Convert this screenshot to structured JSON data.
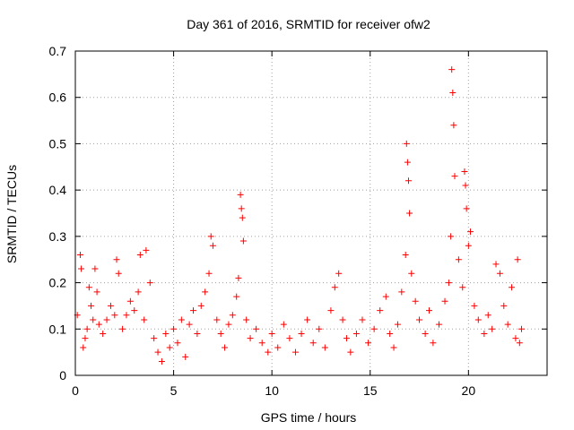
{
  "chart_data": {
    "type": "scatter",
    "title": "Day 361 of 2016, SRMTID for receiver ofw2",
    "xlabel": "GPS time / hours",
    "ylabel": "SRMTID / TECUs",
    "xlim": [
      0,
      24
    ],
    "ylim": [
      0,
      0.7
    ],
    "xticks": [
      0,
      5,
      10,
      15,
      20
    ],
    "yticks": [
      0,
      0.1,
      0.2,
      0.3,
      0.4,
      0.5,
      0.6,
      0.7
    ],
    "grid": true,
    "marker": "+",
    "marker_color": "#ff0000",
    "series": [
      {
        "name": "ofw2",
        "points": [
          [
            0.1,
            0.13
          ],
          [
            0.25,
            0.26
          ],
          [
            0.3,
            0.23
          ],
          [
            0.4,
            0.06
          ],
          [
            0.5,
            0.08
          ],
          [
            0.6,
            0.1
          ],
          [
            0.7,
            0.19
          ],
          [
            0.8,
            0.15
          ],
          [
            0.9,
            0.12
          ],
          [
            1.0,
            0.23
          ],
          [
            1.1,
            0.18
          ],
          [
            1.2,
            0.11
          ],
          [
            1.4,
            0.09
          ],
          [
            1.6,
            0.12
          ],
          [
            1.8,
            0.15
          ],
          [
            2.0,
            0.13
          ],
          [
            2.1,
            0.25
          ],
          [
            2.2,
            0.22
          ],
          [
            2.4,
            0.1
          ],
          [
            2.6,
            0.13
          ],
          [
            2.8,
            0.16
          ],
          [
            3.0,
            0.14
          ],
          [
            3.2,
            0.18
          ],
          [
            3.3,
            0.26
          ],
          [
            3.5,
            0.12
          ],
          [
            3.6,
            0.27
          ],
          [
            3.8,
            0.2
          ],
          [
            4.0,
            0.08
          ],
          [
            4.2,
            0.05
          ],
          [
            4.4,
            0.03
          ],
          [
            4.6,
            0.09
          ],
          [
            4.8,
            0.06
          ],
          [
            5.0,
            0.1
          ],
          [
            5.2,
            0.07
          ],
          [
            5.4,
            0.12
          ],
          [
            5.6,
            0.04
          ],
          [
            5.8,
            0.11
          ],
          [
            6.0,
            0.14
          ],
          [
            6.2,
            0.09
          ],
          [
            6.4,
            0.15
          ],
          [
            6.6,
            0.18
          ],
          [
            6.8,
            0.22
          ],
          [
            6.9,
            0.3
          ],
          [
            7.0,
            0.28
          ],
          [
            7.2,
            0.12
          ],
          [
            7.4,
            0.09
          ],
          [
            7.6,
            0.06
          ],
          [
            7.8,
            0.11
          ],
          [
            8.0,
            0.13
          ],
          [
            8.2,
            0.17
          ],
          [
            8.3,
            0.21
          ],
          [
            8.4,
            0.39
          ],
          [
            8.45,
            0.36
          ],
          [
            8.5,
            0.34
          ],
          [
            8.55,
            0.29
          ],
          [
            8.7,
            0.12
          ],
          [
            8.9,
            0.08
          ],
          [
            9.2,
            0.1
          ],
          [
            9.5,
            0.07
          ],
          [
            9.8,
            0.05
          ],
          [
            10.0,
            0.09
          ],
          [
            10.3,
            0.06
          ],
          [
            10.6,
            0.11
          ],
          [
            10.9,
            0.08
          ],
          [
            11.2,
            0.05
          ],
          [
            11.5,
            0.09
          ],
          [
            11.8,
            0.12
          ],
          [
            12.1,
            0.07
          ],
          [
            12.4,
            0.1
          ],
          [
            12.7,
            0.06
          ],
          [
            13.0,
            0.14
          ],
          [
            13.2,
            0.19
          ],
          [
            13.4,
            0.22
          ],
          [
            13.6,
            0.12
          ],
          [
            13.8,
            0.08
          ],
          [
            14.0,
            0.05
          ],
          [
            14.3,
            0.09
          ],
          [
            14.6,
            0.12
          ],
          [
            14.9,
            0.07
          ],
          [
            15.2,
            0.1
          ],
          [
            15.5,
            0.14
          ],
          [
            15.8,
            0.17
          ],
          [
            16.0,
            0.09
          ],
          [
            16.2,
            0.06
          ],
          [
            16.4,
            0.11
          ],
          [
            16.6,
            0.18
          ],
          [
            16.8,
            0.26
          ],
          [
            16.85,
            0.5
          ],
          [
            16.9,
            0.46
          ],
          [
            16.95,
            0.42
          ],
          [
            17.0,
            0.35
          ],
          [
            17.1,
            0.22
          ],
          [
            17.3,
            0.16
          ],
          [
            17.5,
            0.12
          ],
          [
            17.8,
            0.09
          ],
          [
            18.0,
            0.14
          ],
          [
            18.2,
            0.07
          ],
          [
            18.5,
            0.11
          ],
          [
            18.8,
            0.16
          ],
          [
            19.0,
            0.2
          ],
          [
            19.1,
            0.3
          ],
          [
            19.15,
            0.66
          ],
          [
            19.2,
            0.61
          ],
          [
            19.25,
            0.54
          ],
          [
            19.3,
            0.43
          ],
          [
            19.5,
            0.25
          ],
          [
            19.7,
            0.19
          ],
          [
            19.8,
            0.44
          ],
          [
            19.85,
            0.41
          ],
          [
            19.9,
            0.36
          ],
          [
            20.0,
            0.28
          ],
          [
            20.1,
            0.31
          ],
          [
            20.3,
            0.15
          ],
          [
            20.5,
            0.12
          ],
          [
            20.8,
            0.09
          ],
          [
            21.0,
            0.13
          ],
          [
            21.2,
            0.1
          ],
          [
            21.4,
            0.24
          ],
          [
            21.6,
            0.22
          ],
          [
            21.8,
            0.15
          ],
          [
            22.0,
            0.11
          ],
          [
            22.2,
            0.19
          ],
          [
            22.4,
            0.08
          ],
          [
            22.5,
            0.25
          ],
          [
            22.6,
            0.07
          ],
          [
            22.7,
            0.1
          ]
        ]
      }
    ]
  }
}
